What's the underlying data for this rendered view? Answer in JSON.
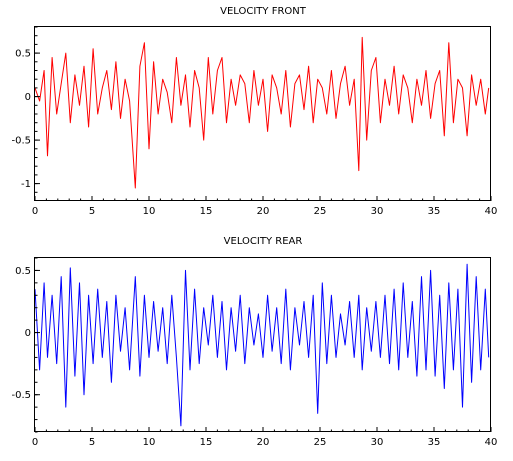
{
  "chart_data": [
    {
      "type": "line",
      "title": "VELOCITY FRONT",
      "xlabel": "",
      "ylabel": "",
      "xlim": [
        0,
        40
      ],
      "ylim": [
        -1.2,
        0.8
      ],
      "x_ticks": [
        0,
        5,
        10,
        15,
        20,
        25,
        30,
        35,
        40
      ],
      "y_ticks": [
        -1,
        -0.5,
        0,
        0.5
      ],
      "grid": false,
      "series": [
        {
          "color": "#ff0000",
          "x": [
            0,
            0.4,
            0.8,
            1.1,
            1.5,
            1.9,
            2.3,
            2.7,
            3.1,
            3.5,
            3.9,
            4.3,
            4.7,
            5.1,
            5.5,
            5.9,
            6.3,
            6.7,
            7.1,
            7.5,
            7.9,
            8.3,
            8.8,
            9.2,
            9.6,
            10.0,
            10.4,
            10.8,
            11.2,
            11.6,
            12.0,
            12.4,
            12.8,
            13.2,
            13.6,
            14.0,
            14.4,
            14.8,
            15.2,
            15.6,
            16.0,
            16.4,
            16.8,
            17.2,
            17.6,
            18.0,
            18.4,
            18.8,
            19.2,
            19.6,
            20.0,
            20.4,
            20.8,
            21.2,
            21.6,
            22.0,
            22.4,
            22.8,
            23.2,
            23.6,
            24.0,
            24.4,
            24.8,
            25.2,
            25.6,
            26.0,
            26.4,
            26.8,
            27.2,
            27.6,
            28.0,
            28.4,
            28.7,
            29.1,
            29.5,
            29.9,
            30.3,
            30.7,
            31.1,
            31.5,
            31.9,
            32.3,
            32.7,
            33.1,
            33.5,
            33.9,
            34.3,
            34.7,
            35.1,
            35.5,
            35.9,
            36.3,
            36.7,
            37.1,
            37.5,
            37.9,
            38.3,
            38.7,
            39.1,
            39.5,
            39.8
          ],
          "values": [
            0.1,
            -0.05,
            0.3,
            -0.68,
            0.45,
            -0.2,
            0.15,
            0.5,
            -0.3,
            0.25,
            -0.1,
            0.35,
            -0.35,
            0.55,
            -0.2,
            0.1,
            0.3,
            -0.15,
            0.4,
            -0.25,
            0.2,
            -0.05,
            -1.05,
            0.35,
            0.62,
            -0.6,
            0.4,
            -0.2,
            0.2,
            0.05,
            -0.3,
            0.45,
            -0.1,
            0.25,
            -0.35,
            0.3,
            0.1,
            -0.5,
            0.45,
            -0.2,
            0.3,
            0.45,
            -0.3,
            0.2,
            -0.1,
            0.25,
            0.15,
            -0.3,
            0.3,
            -0.1,
            0.2,
            -0.4,
            0.25,
            0.1,
            -0.2,
            0.3,
            -0.35,
            0.15,
            0.25,
            -0.15,
            0.35,
            -0.3,
            0.2,
            0.1,
            -0.2,
            0.3,
            -0.25,
            0.15,
            0.35,
            -0.1,
            0.2,
            -0.85,
            0.68,
            -0.5,
            0.3,
            0.45,
            -0.3,
            0.2,
            -0.1,
            0.35,
            -0.2,
            0.25,
            0.1,
            -0.3,
            0.2,
            -0.1,
            0.3,
            -0.25,
            0.15,
            0.3,
            -0.45,
            0.62,
            -0.3,
            0.2,
            0.1,
            -0.45,
            0.25,
            -0.1,
            0.2,
            -0.2,
            0.1
          ]
        }
      ]
    },
    {
      "type": "line",
      "title": "VELOCITY REAR",
      "xlabel": "",
      "ylabel": "",
      "xlim": [
        0,
        40
      ],
      "ylim": [
        -0.8,
        0.6
      ],
      "x_ticks": [
        0,
        5,
        10,
        15,
        20,
        25,
        30,
        35,
        40
      ],
      "y_ticks": [
        -0.5,
        0,
        0.5
      ],
      "grid": false,
      "series": [
        {
          "color": "#0000ff",
          "x": [
            0,
            0.4,
            0.8,
            1.1,
            1.5,
            1.9,
            2.3,
            2.7,
            3.1,
            3.5,
            3.9,
            4.3,
            4.7,
            5.1,
            5.5,
            5.9,
            6.3,
            6.7,
            7.1,
            7.5,
            7.9,
            8.3,
            8.8,
            9.2,
            9.6,
            10.0,
            10.4,
            10.8,
            11.2,
            11.6,
            12.0,
            12.4,
            12.8,
            13.2,
            13.6,
            14.0,
            14.4,
            14.8,
            15.2,
            15.6,
            16.0,
            16.4,
            16.8,
            17.2,
            17.6,
            18.0,
            18.4,
            18.8,
            19.2,
            19.6,
            20.0,
            20.4,
            20.8,
            21.2,
            21.6,
            22.0,
            22.4,
            22.8,
            23.2,
            23.6,
            24.0,
            24.4,
            24.8,
            25.2,
            25.6,
            26.0,
            26.4,
            26.8,
            27.2,
            27.6,
            28.0,
            28.4,
            28.7,
            29.1,
            29.5,
            29.9,
            30.3,
            30.7,
            31.1,
            31.5,
            31.9,
            32.3,
            32.7,
            33.1,
            33.5,
            33.9,
            34.3,
            34.7,
            35.1,
            35.5,
            35.9,
            36.3,
            36.7,
            37.1,
            37.5,
            37.9,
            38.3,
            38.7,
            39.1,
            39.5,
            39.8
          ],
          "values": [
            0.35,
            -0.3,
            0.4,
            -0.2,
            0.3,
            -0.25,
            0.45,
            -0.6,
            0.52,
            -0.35,
            0.4,
            -0.5,
            0.3,
            -0.25,
            0.35,
            -0.2,
            0.25,
            -0.4,
            0.3,
            -0.15,
            0.2,
            -0.3,
            0.45,
            -0.35,
            0.3,
            -0.2,
            0.25,
            -0.15,
            0.2,
            -0.25,
            0.3,
            -0.2,
            -0.75,
            0.5,
            -0.3,
            0.35,
            -0.25,
            0.2,
            -0.1,
            0.3,
            -0.2,
            0.25,
            -0.3,
            0.2,
            -0.15,
            0.3,
            -0.25,
            0.2,
            -0.1,
            0.15,
            -0.2,
            0.3,
            -0.15,
            0.2,
            -0.25,
            0.35,
            -0.3,
            0.2,
            -0.1,
            0.25,
            -0.2,
            0.3,
            -0.65,
            0.4,
            -0.25,
            0.3,
            -0.2,
            0.15,
            -0.1,
            0.25,
            -0.2,
            0.3,
            -0.3,
            0.2,
            -0.15,
            0.25,
            -0.2,
            0.3,
            -0.25,
            0.35,
            -0.3,
            0.4,
            -0.2,
            0.25,
            -0.35,
            0.45,
            -0.3,
            0.5,
            -0.35,
            0.3,
            -0.45,
            0.4,
            -0.3,
            0.35,
            -0.6,
            0.55,
            -0.4,
            0.45,
            -0.3,
            0.35,
            -0.2
          ]
        }
      ]
    }
  ]
}
